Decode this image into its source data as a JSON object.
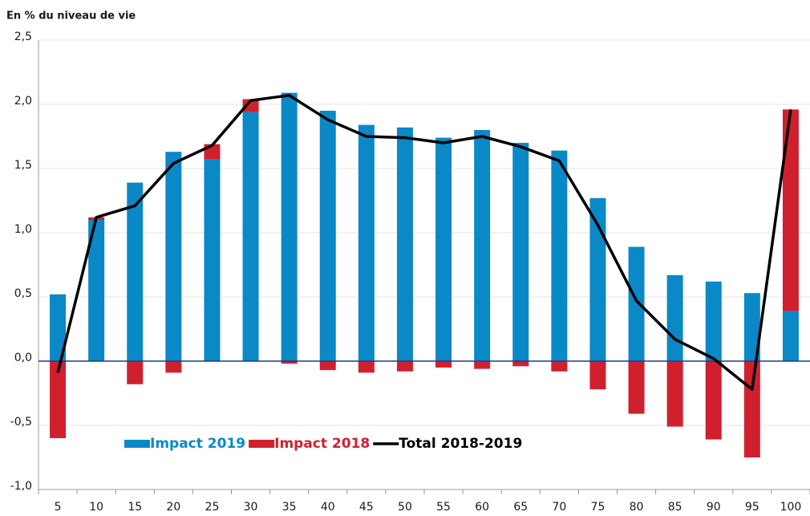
{
  "chart_data": {
    "type": "bar",
    "title": "En % du niveau de vie",
    "categories": [
      "5",
      "10",
      "15",
      "20",
      "25",
      "30",
      "35",
      "40",
      "45",
      "50",
      "55",
      "60",
      "65",
      "70",
      "75",
      "80",
      "85",
      "90",
      "95",
      "100"
    ],
    "series": [
      {
        "name": "Impact 2019",
        "type": "bar",
        "color": "#0a89c6",
        "values": [
          0.52,
          1.1,
          1.39,
          1.63,
          1.57,
          1.94,
          2.09,
          1.95,
          1.84,
          1.82,
          1.74,
          1.8,
          1.7,
          1.64,
          1.27,
          0.89,
          0.67,
          0.62,
          0.53,
          0.39
        ]
      },
      {
        "name": "Impact 2018",
        "type": "bar",
        "color": "#d0202e",
        "values": [
          -0.6,
          0.02,
          -0.18,
          -0.09,
          0.12,
          0.1,
          -0.02,
          -0.07,
          -0.09,
          -0.08,
          -0.05,
          -0.06,
          -0.04,
          -0.08,
          -0.22,
          -0.41,
          -0.51,
          -0.61,
          -0.75,
          1.57
        ]
      },
      {
        "name": "Total 2018-2019",
        "type": "line",
        "color": "#000000",
        "values": [
          -0.09,
          1.12,
          1.21,
          1.54,
          1.68,
          2.03,
          2.07,
          1.88,
          1.75,
          1.74,
          1.7,
          1.75,
          1.67,
          1.56,
          1.06,
          0.47,
          0.17,
          0.02,
          -0.22,
          1.96
        ]
      }
    ],
    "stacked": true,
    "ylim": [
      -1.0,
      2.5
    ],
    "yticks": [
      {
        "value": -1.0,
        "label": "-1,0"
      },
      {
        "value": -0.5,
        "label": "-0,5"
      },
      {
        "value": 0,
        "label": "0,0"
      },
      {
        "value": 0.5,
        "label": "0,5"
      },
      {
        "value": 1.0,
        "label": "1,0"
      },
      {
        "value": 1.5,
        "label": "1,5"
      },
      {
        "value": 2.0,
        "label": "2,0"
      },
      {
        "value": 2.5,
        "label": "2,5"
      }
    ],
    "grid": true
  }
}
